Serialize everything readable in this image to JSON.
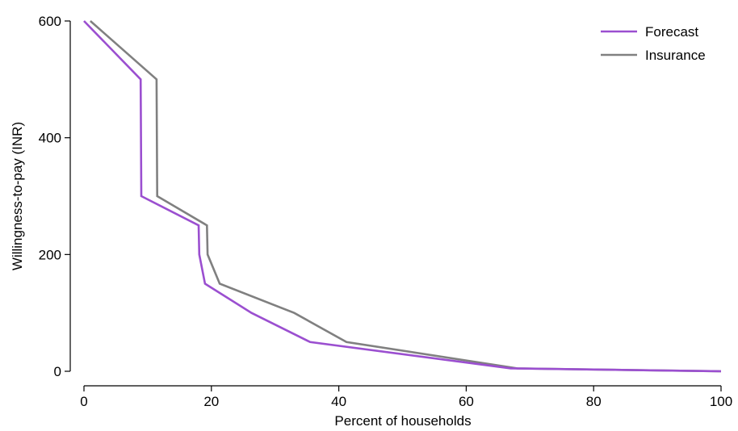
{
  "chart_data": {
    "type": "line",
    "title": "",
    "xlabel": "Percent of households",
    "ylabel": "Willingness-to-pay (INR)",
    "xlim": [
      0,
      100
    ],
    "ylim": [
      0,
      600
    ],
    "xticks": [
      0,
      20,
      40,
      60,
      80,
      100
    ],
    "yticks": [
      0,
      200,
      400,
      600
    ],
    "grid": false,
    "legend_position": "top-right",
    "series": [
      {
        "name": "Forecast",
        "color": "#9b4fd0",
        "points": [
          [
            0,
            600
          ],
          [
            8.9,
            500
          ],
          [
            9.0,
            300
          ],
          [
            18.0,
            250
          ],
          [
            18.1,
            200
          ],
          [
            19.0,
            150
          ],
          [
            26.3,
            100
          ],
          [
            35.5,
            50
          ],
          [
            67.0,
            5
          ],
          [
            80,
            3
          ],
          [
            90,
            1.5
          ],
          [
            100,
            0
          ]
        ]
      },
      {
        "name": "Insurance",
        "color": "#808080",
        "points": [
          [
            1.0,
            600
          ],
          [
            11.4,
            500
          ],
          [
            11.5,
            300
          ],
          [
            19.3,
            250
          ],
          [
            19.4,
            200
          ],
          [
            21.3,
            150
          ],
          [
            33.0,
            100
          ],
          [
            41.2,
            50
          ],
          [
            68.0,
            5
          ],
          [
            80,
            3
          ],
          [
            90,
            1.5
          ],
          [
            100,
            0
          ]
        ]
      }
    ]
  }
}
